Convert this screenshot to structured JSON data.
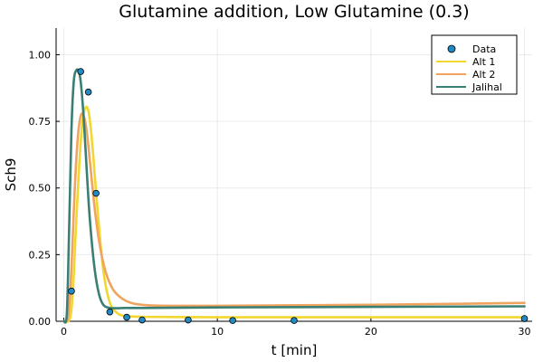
{
  "chart_data": {
    "type": "line",
    "title": "Glutamine addition, Low Glutamine (0.3)",
    "xlabel": "t [min]",
    "ylabel": "Sch9",
    "xlim": [
      -0.5,
      30.5
    ],
    "ylim": [
      0,
      1.1
    ],
    "xticks": [
      0,
      10,
      20,
      30
    ],
    "yticks": [
      0.0,
      0.25,
      0.5,
      0.75,
      1.0
    ],
    "xtick_labels": [
      "0",
      "10",
      "20",
      "30"
    ],
    "ytick_labels": [
      "0.00",
      "0.25",
      "0.50",
      "0.75",
      "1.00"
    ],
    "grid": true,
    "legend_position": "top-right",
    "scatter": {
      "name": "Data",
      "color": "#1f8bc6",
      "x": [
        0.5,
        1.1,
        1.6,
        2.1,
        3.0,
        4.1,
        5.1,
        8.1,
        11.0,
        15.0,
        30.0
      ],
      "y": [
        0.113,
        0.937,
        0.86,
        0.48,
        0.035,
        0.015,
        0.005,
        0.005,
        0.003,
        0.003,
        0.01
      ]
    },
    "series": [
      {
        "name": "Alt 1",
        "color": "#f1d72f",
        "x": [
          0,
          0.4,
          0.6,
          0.8,
          1.0,
          1.2,
          1.4,
          1.6,
          1.8,
          2.0,
          2.3,
          2.6,
          3.0,
          3.5,
          4.0,
          5.0,
          7.0,
          10.0,
          15.0,
          20.0,
          25.0,
          30.0
        ],
        "y": [
          0.0,
          0.01,
          0.12,
          0.36,
          0.58,
          0.74,
          0.8,
          0.79,
          0.7,
          0.56,
          0.35,
          0.18,
          0.07,
          0.03,
          0.02,
          0.017,
          0.016,
          0.015,
          0.015,
          0.015,
          0.015,
          0.015
        ]
      },
      {
        "name": "Alt 2",
        "color": "#f0a45e",
        "x": [
          0,
          0.3,
          0.5,
          0.7,
          0.9,
          1.1,
          1.3,
          1.5,
          1.7,
          2.0,
          2.3,
          2.7,
          3.2,
          3.8,
          4.5,
          5.5,
          7.0,
          10.0,
          15.0,
          20.0,
          25.0,
          30.0
        ],
        "y": [
          0.0,
          0.02,
          0.2,
          0.48,
          0.68,
          0.77,
          0.77,
          0.71,
          0.6,
          0.43,
          0.3,
          0.19,
          0.12,
          0.085,
          0.067,
          0.06,
          0.058,
          0.058,
          0.06,
          0.062,
          0.065,
          0.069
        ]
      },
      {
        "name": "Jalihal",
        "color": "#3a7f73",
        "x": [
          0,
          0.2,
          0.35,
          0.5,
          0.65,
          0.8,
          0.95,
          1.1,
          1.3,
          1.5,
          1.7,
          2.0,
          2.3,
          2.6,
          3.0,
          3.5,
          4.0,
          5.0,
          10.0,
          20.0,
          30.0
        ],
        "y": [
          0.0,
          0.03,
          0.35,
          0.72,
          0.9,
          0.94,
          0.94,
          0.9,
          0.76,
          0.56,
          0.38,
          0.2,
          0.1,
          0.06,
          0.05,
          0.049,
          0.05,
          0.05,
          0.052,
          0.054,
          0.056
        ]
      }
    ]
  }
}
